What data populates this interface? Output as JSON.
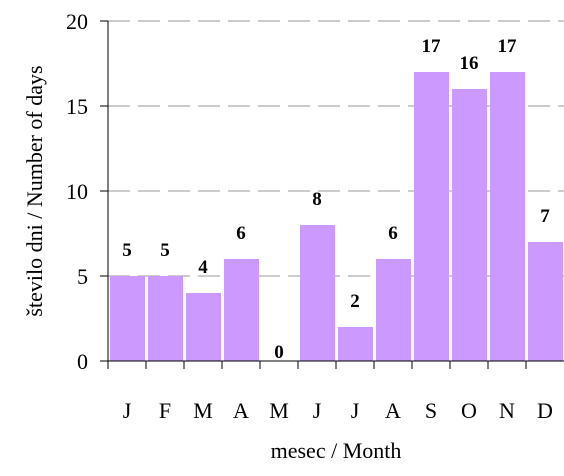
{
  "chart_data": {
    "type": "bar",
    "categories": [
      "J",
      "F",
      "M",
      "A",
      "M",
      "J",
      "J",
      "A",
      "S",
      "O",
      "N",
      "D"
    ],
    "values": [
      5,
      5,
      4,
      6,
      0,
      8,
      2,
      6,
      17,
      16,
      17,
      7
    ],
    "color": "#cc99ff",
    "ylim": [
      0,
      20
    ],
    "yticks": [
      0,
      5,
      10,
      15,
      20
    ],
    "grid": true,
    "x_label": "mesec / Month",
    "y_label": "število dni  / Number of days"
  }
}
